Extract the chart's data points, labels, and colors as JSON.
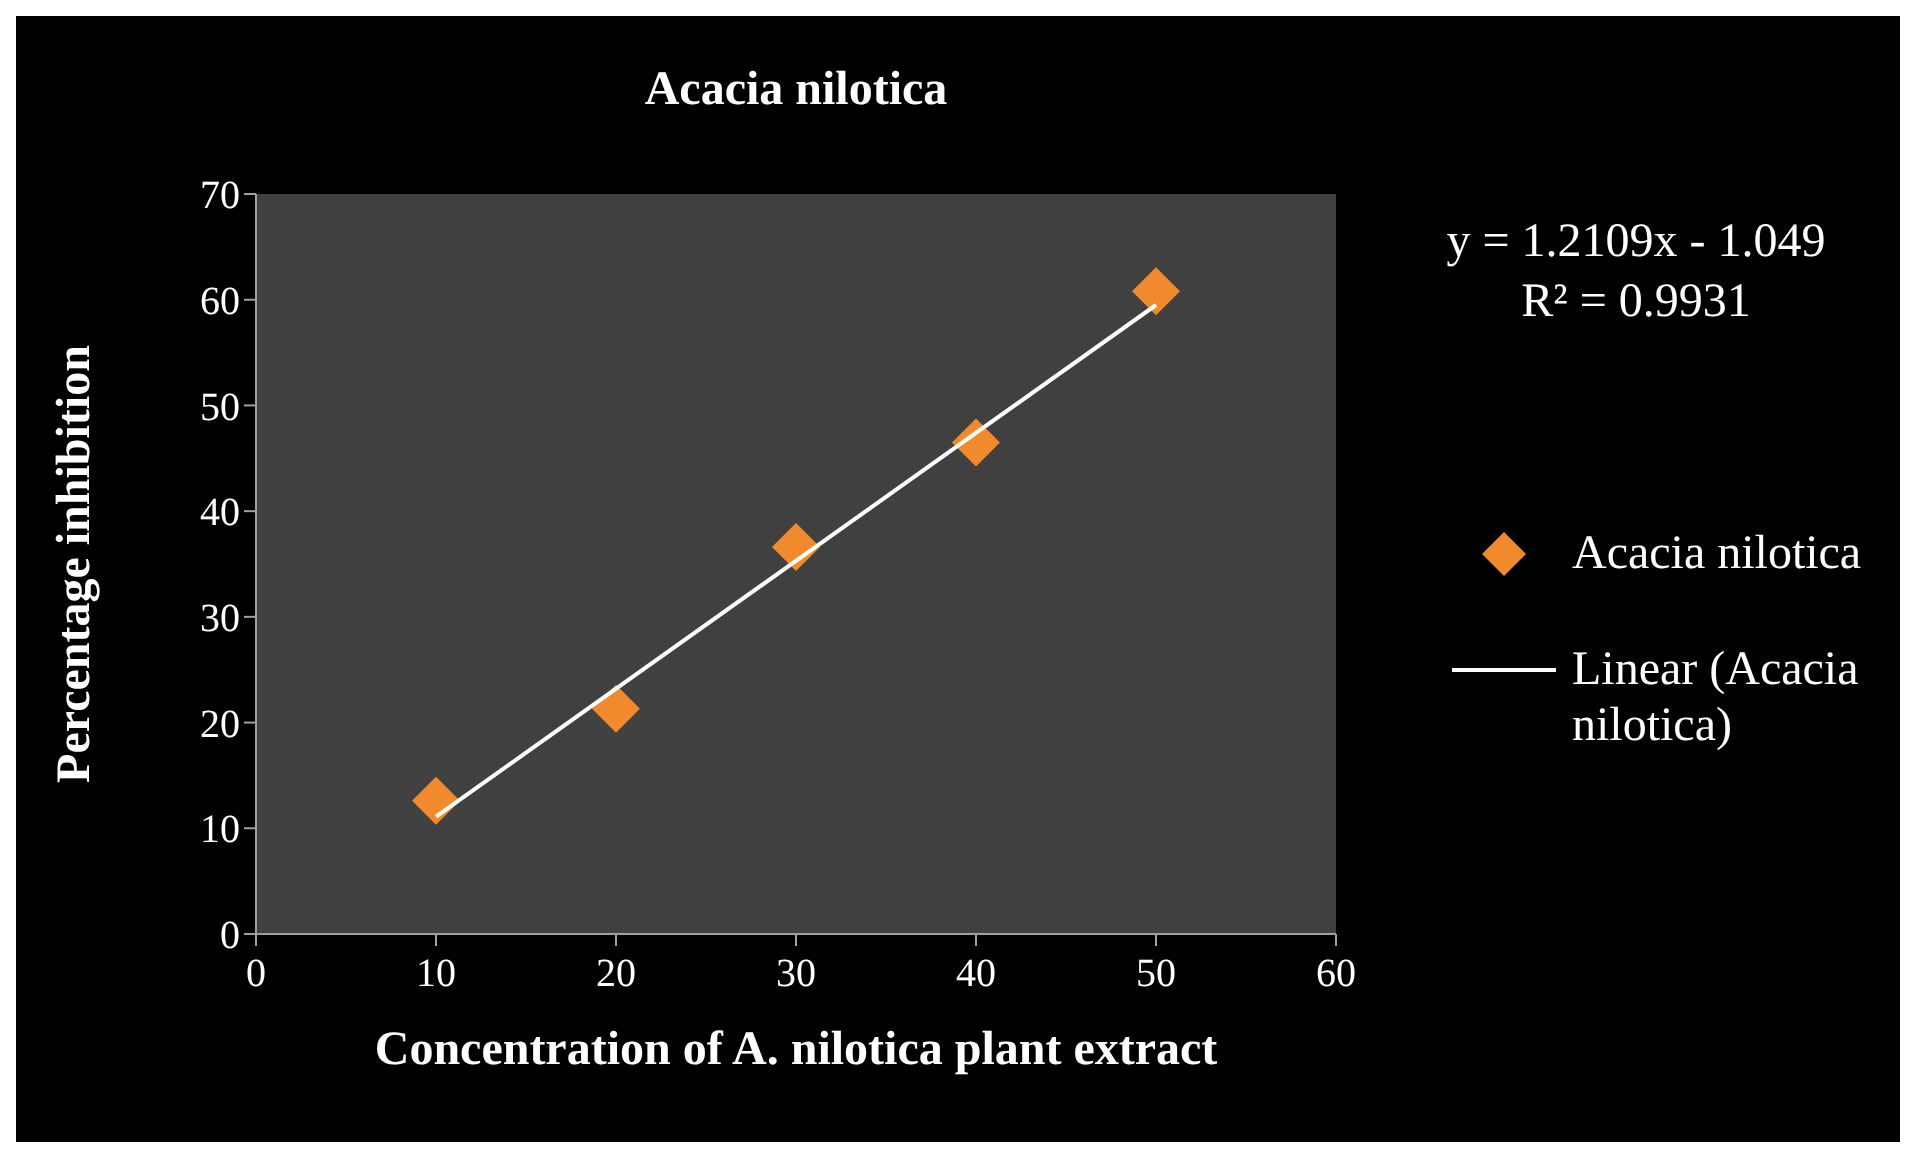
{
  "chart_data": {
    "type": "scatter",
    "title": "Acacia nilotica",
    "xlabel": "Concentration of A. nilotica plant extract",
    "ylabel": "Percentage inhibition",
    "xlim": [
      0,
      60
    ],
    "xticks": [
      0,
      10,
      20,
      30,
      40,
      50,
      60
    ],
    "ylim": [
      0,
      70
    ],
    "yticks": [
      0,
      10,
      20,
      30,
      40,
      50,
      60,
      70
    ],
    "grid": false,
    "legend": "right",
    "series": [
      {
        "name": "Acacia nilotica",
        "marker": "diamond",
        "color": "#f08a2c",
        "x": [
          10,
          20,
          30,
          40,
          50
        ],
        "values": [
          12.6,
          21.3,
          36.6,
          46.5,
          60.8
        ]
      },
      {
        "name": "Linear (Acacia nilotica)",
        "type": "line",
        "color": "#ffffff",
        "x": [
          10,
          50
        ],
        "values": [
          11.1,
          59.5
        ]
      }
    ],
    "annotations": [
      "y = 1.2109x - 1.049",
      "R² = 0.9931"
    ]
  }
}
